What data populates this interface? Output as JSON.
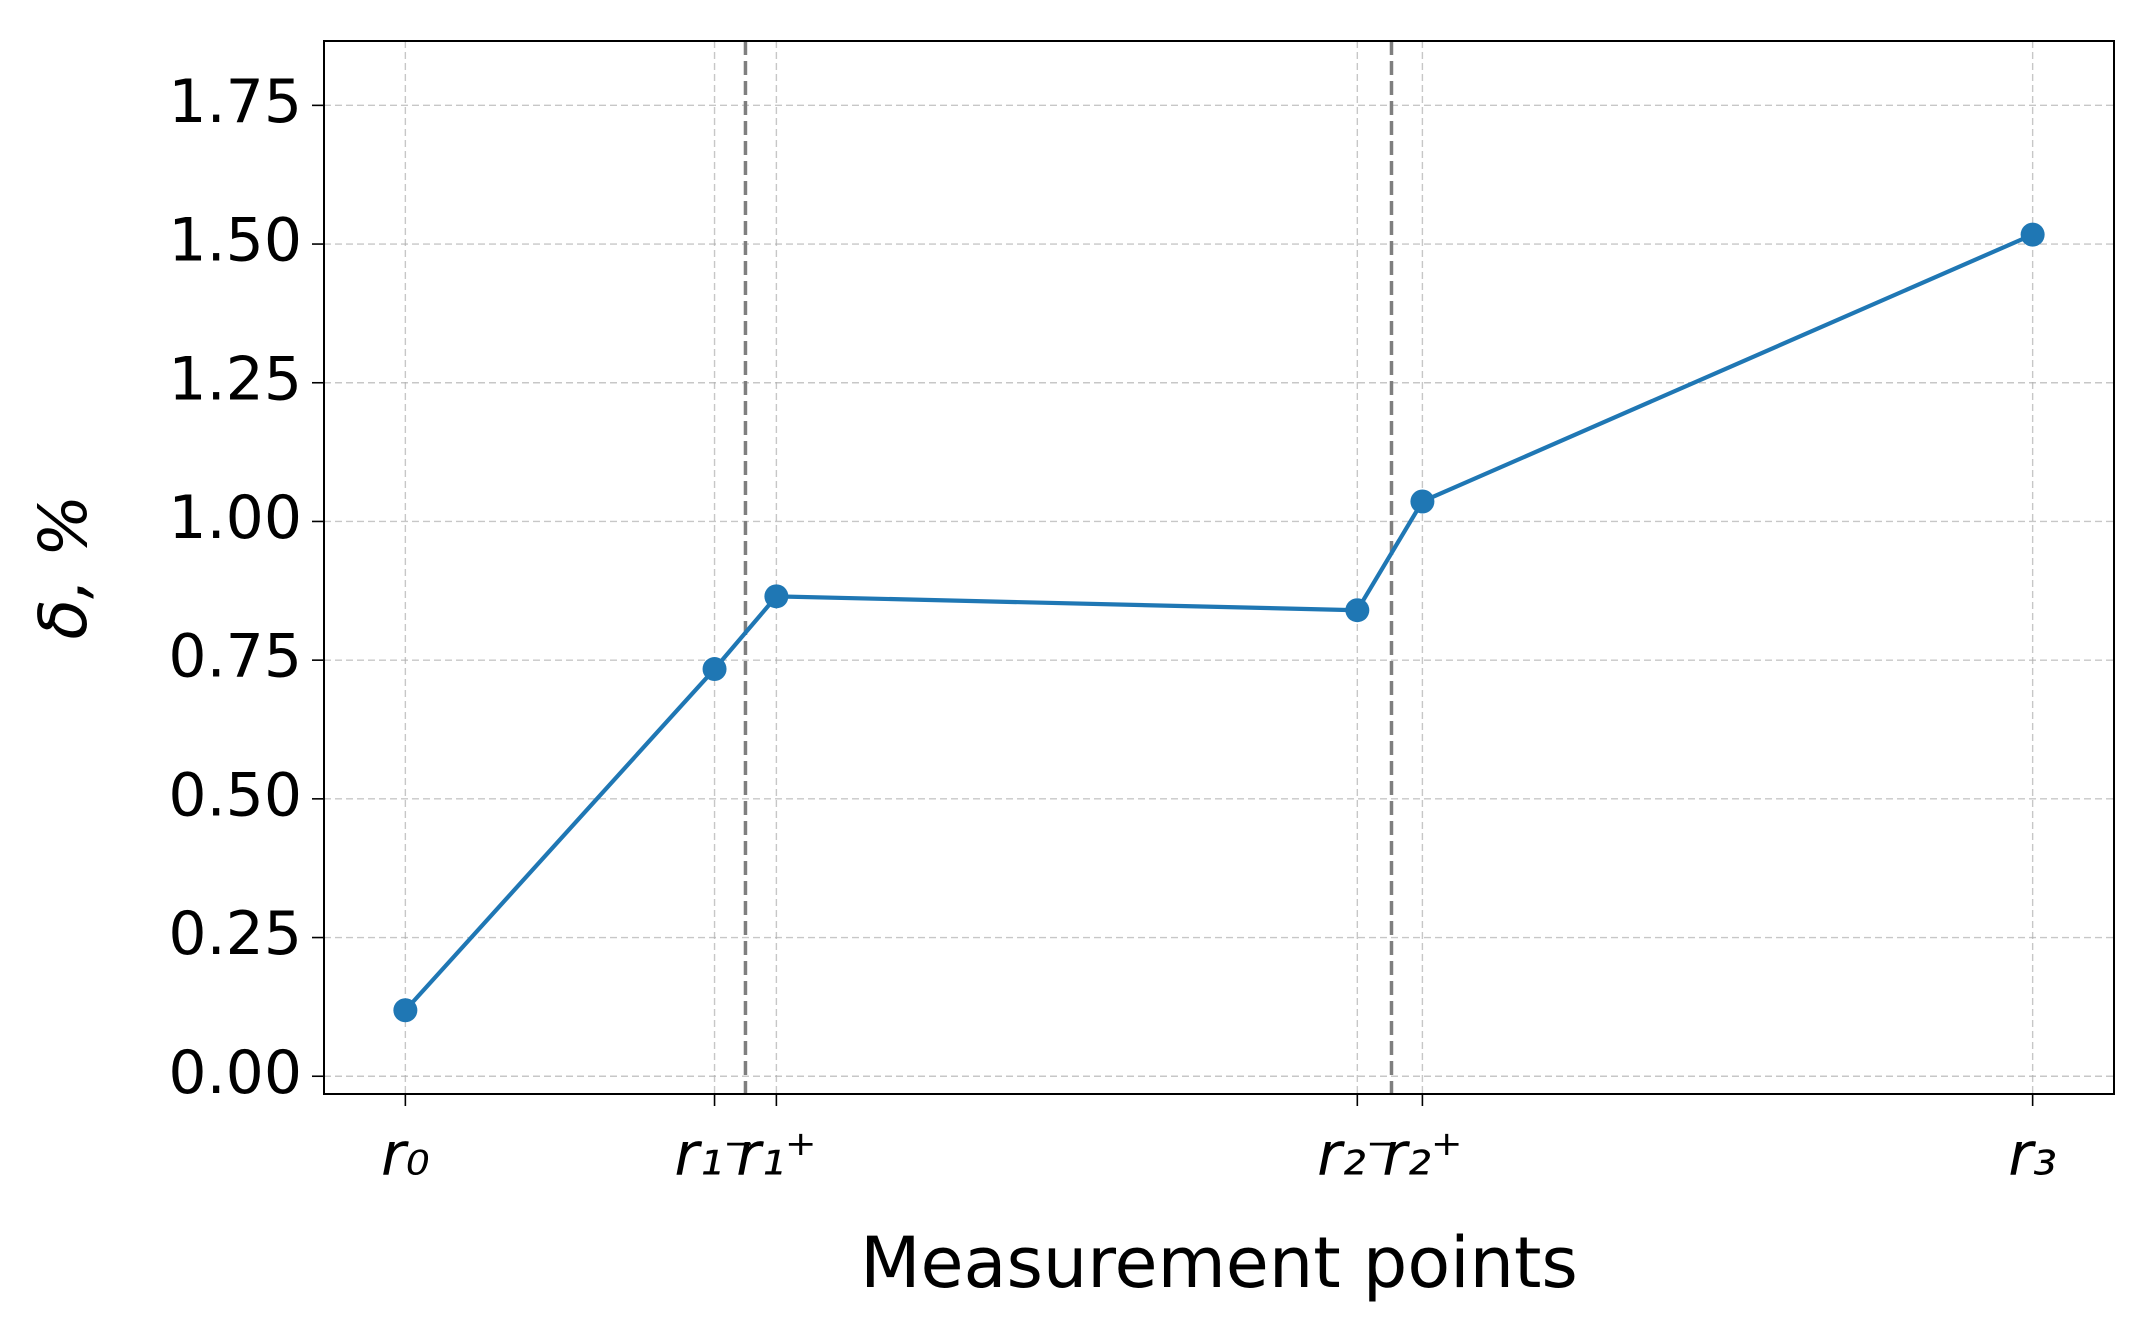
{
  "chart_data": {
    "type": "line",
    "xlabel": "Measurement points",
    "ylabel": "δ, %",
    "x": [
      0,
      0.19,
      0.228,
      0.585,
      0.625,
      1
    ],
    "series": [
      {
        "color": "#1f77b4",
        "values": [
          0.119,
          0.734,
          0.865,
          0.84,
          1.036,
          1.517
        ]
      }
    ],
    "xlim": [
      -0.05,
      1.05
    ],
    "xticks": [
      {
        "value": 0,
        "label": "r₀"
      },
      {
        "value": 0.19,
        "label": "r₁⁻"
      },
      {
        "value": 0.228,
        "label": "r₁⁺"
      },
      {
        "value": 0.585,
        "label": "r₂⁻"
      },
      {
        "value": 0.625,
        "label": "r₂⁺"
      },
      {
        "value": 1,
        "label": "r₃"
      }
    ],
    "ylim": [
      -0.032,
      1.866
    ],
    "yticks": [
      {
        "value": 0,
        "label": "0.00"
      },
      {
        "value": 0.25,
        "label": "0.25"
      },
      {
        "value": 0.5,
        "label": "0.50"
      },
      {
        "value": 0.75,
        "label": "0.75"
      },
      {
        "value": 1,
        "label": "1.00"
      },
      {
        "value": 1.25,
        "label": "1.25"
      },
      {
        "value": 1.5,
        "label": "1.50"
      },
      {
        "value": 1.75,
        "label": "1.75"
      }
    ],
    "vlines": [
      0.209,
      0.606
    ],
    "vline_color": "#7f7f7f",
    "grid": true
  }
}
